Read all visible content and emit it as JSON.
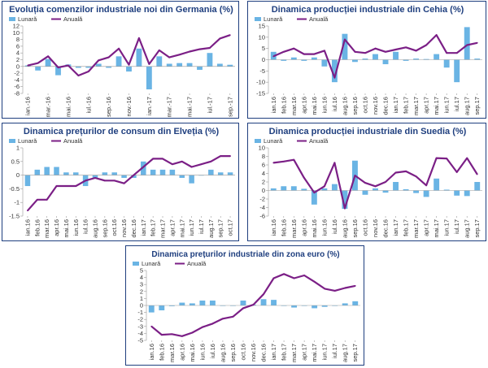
{
  "colors": {
    "bar": "#6ab4e4",
    "line": "#7b1f86",
    "title": "#1f3f7f",
    "border": "#1f3f7f",
    "axis": "#999999"
  },
  "chart_data": [
    {
      "type": "bar+line",
      "title": "Evoluția comenzilor industriale noi din Germania (%)",
      "legend": [
        "Lunară",
        "Anuală"
      ],
      "legend_position": "top-left",
      "ylim": [
        -8,
        12
      ],
      "yticks": [
        -8,
        -6,
        -4,
        -2,
        0,
        2,
        4,
        6,
        8,
        10,
        12
      ],
      "categories": [
        "ian.-16",
        "feb.-16",
        "mar.-16",
        "apr.-16",
        "mai.-16",
        "iun.-16",
        "iul.-16",
        "aug.-16",
        "sep.-16",
        "oct.-16",
        "nov.-16",
        "dec.-16",
        "ian.-17",
        "feb.-17",
        "mar.-17",
        "apr.-17",
        "mai.-17",
        "iun.-17",
        "iul.-17",
        "aug.-17",
        "sep.-17"
      ],
      "xtick_labels": [
        "ian.-16",
        "mar.-16",
        "mai.-16",
        "iul.-16",
        "sep.-16",
        "nov.-16",
        "ian.-17",
        "mar.-17",
        "mai.-17",
        "iul.-17",
        "sep.-17"
      ],
      "xtick_step": 2,
      "series": [
        {
          "name": "Lunară",
          "values": [
            0.3,
            -1.2,
            2.2,
            -2.6,
            0.6,
            -0.4,
            -0.4,
            0.8,
            -0.4,
            3.0,
            -1.5,
            5.3,
            -6.8,
            3.0,
            0.8,
            1.0,
            1.0,
            -1.0,
            4.0,
            0.8,
            0.5
          ]
        },
        {
          "name": "Anuală",
          "values": [
            0.3,
            1.0,
            3.0,
            -0.3,
            0.3,
            -2.7,
            -1.5,
            1.8,
            2.7,
            5.3,
            0.5,
            8.4,
            0.7,
            4.8,
            2.7,
            3.5,
            4.4,
            5.1,
            5.5,
            8.3,
            9.3
          ]
        }
      ]
    },
    {
      "type": "bar+line",
      "title": "Dinamica producției industriale din Cehia (%)",
      "legend": [
        "Lunară",
        "Anuală"
      ],
      "legend_position": "top-left",
      "ylim": [
        -15,
        15
      ],
      "yticks": [
        -15,
        -10,
        -5,
        0,
        5,
        10,
        15
      ],
      "categories": [
        "ian.16",
        "feb.16",
        "mar.16",
        "apr.16",
        "mai.16",
        "iun.16",
        "iul.16",
        "aug.16",
        "sep.16",
        "oct.16",
        "nov.16",
        "dec.16",
        "ian.17",
        "feb.17",
        "mar.17",
        "apr.17",
        "mai.17",
        "iun.17",
        "iul.17",
        "aug.17",
        "sep.17"
      ],
      "xtick_labels": [
        "ian.16",
        "feb.16",
        "mar.16",
        "apr.16",
        "mai.16",
        "iun.16",
        "iul.16",
        "aug.16",
        "sep.16",
        "oct.16",
        "nov.16",
        "dec.16",
        "ian.17",
        "feb.17",
        "mar.17",
        "apr.17",
        "mai.17",
        "iun.17",
        "iul.17",
        "aug.17",
        "sep.17"
      ],
      "xtick_step": 1,
      "series": [
        {
          "name": "Lunară",
          "values": [
            3.5,
            -0.5,
            1.0,
            -0.5,
            1.0,
            -3.0,
            -10.0,
            11.5,
            -1.0,
            0.5,
            2.5,
            -2.0,
            3.5,
            -0.5,
            0.5,
            0.3,
            2.5,
            -3.5,
            -10.0,
            14.5,
            0.5
          ]
        },
        {
          "name": "Anuală",
          "values": [
            1.5,
            3.5,
            5.0,
            2.5,
            2.5,
            4.0,
            -8.0,
            9.0,
            3.5,
            3.0,
            5.0,
            3.5,
            4.5,
            5.5,
            4.0,
            6.5,
            11.0,
            3.0,
            3.0,
            6.5,
            7.5
          ]
        }
      ]
    },
    {
      "type": "bar+line",
      "title": "Dinamica prețurilor de consum din Elveția (%)",
      "legend": [
        "Lunară",
        "Anuală"
      ],
      "legend_position": "top-left",
      "ylim": [
        -1.5,
        1
      ],
      "yticks": [
        -1.5,
        -1,
        -0.5,
        0,
        0.5,
        1
      ],
      "categories": [
        "ian.16",
        "feb.16",
        "mar.16",
        "apr.16",
        "mai.16",
        "iun.16",
        "iul.16",
        "aug.16",
        "sep.16",
        "oct.16",
        "nov.16",
        "dec.16",
        "ian.17",
        "feb.17",
        "mar.17",
        "apr.17",
        "mai.17",
        "iun.17",
        "iul.17",
        "aug.17",
        "sep.17",
        "oct.17"
      ],
      "xtick_labels": [
        "ian.16",
        "feb.16",
        "mar.16",
        "apr.16",
        "mai.16",
        "iun.16",
        "iul.16",
        "aug.16",
        "sep.16",
        "oct.16",
        "nov.16",
        "dec.16",
        "ian.17",
        "feb.17",
        "mar.17",
        "apr.17",
        "mai.17",
        "iun.17",
        "iul.17",
        "aug.17",
        "sep.17",
        "oct.17"
      ],
      "xtick_step": 1,
      "series": [
        {
          "name": "Lunară",
          "values": [
            -0.4,
            0.2,
            0.3,
            0.3,
            0.1,
            0.1,
            -0.4,
            -0.1,
            0.1,
            0.1,
            -0.1,
            -0.1,
            0.5,
            0.2,
            0.2,
            0.2,
            -0.1,
            -0.3,
            0.0,
            0.2,
            0.1,
            0.1
          ]
        },
        {
          "name": "Anuală",
          "values": [
            -1.3,
            -0.9,
            -0.9,
            -0.4,
            -0.4,
            -0.4,
            -0.2,
            -0.1,
            -0.2,
            -0.2,
            -0.3,
            0.0,
            0.3,
            0.6,
            0.6,
            0.4,
            0.5,
            0.3,
            0.4,
            0.5,
            0.7,
            0.7
          ]
        }
      ]
    },
    {
      "type": "bar+line",
      "title": "Dinamica producției industriale din Suedia (%)",
      "legend": [
        "Lunară",
        "Anuală"
      ],
      "legend_position": "top-left",
      "ylim": [
        -6,
        10
      ],
      "yticks": [
        -6,
        -4,
        -2,
        0,
        2,
        4,
        6,
        8,
        10
      ],
      "categories": [
        "ian.16",
        "feb.16",
        "mar.16",
        "apr.16",
        "mai.16",
        "iun.16",
        "iul.16",
        "aug.16",
        "sep.16",
        "oct.16",
        "nov.16",
        "dec.16",
        "ian.17",
        "feb.17",
        "mar.17",
        "apr.17",
        "mai.17",
        "iun.17",
        "iul.17",
        "aug.17",
        "sep.17"
      ],
      "xtick_labels": [
        "ian.16",
        "feb.16",
        "mar.16",
        "apr.16",
        "mai.16",
        "iun.16",
        "iul.16",
        "aug.16",
        "sep.16",
        "oct.16",
        "nov.16",
        "dec.16",
        "ian.17",
        "feb.17",
        "mar.17",
        "apr.17",
        "mai.17",
        "iun.17",
        "iul.17",
        "aug.17",
        "sep.17"
      ],
      "xtick_step": 1,
      "series": [
        {
          "name": "Lunară",
          "values": [
            0.5,
            1.0,
            1.0,
            0.4,
            -3.3,
            0.5,
            1.5,
            -4.3,
            7.0,
            -1.0,
            0.5,
            -0.5,
            2.0,
            0.3,
            -0.6,
            -1.5,
            2.8,
            0.2,
            -1.2,
            -1.3,
            2.0
          ]
        },
        {
          "name": "Anuală",
          "values": [
            6.5,
            6.8,
            7.2,
            3.0,
            -0.5,
            1.0,
            6.5,
            -4.2,
            3.5,
            1.8,
            1.0,
            2.0,
            4.2,
            4.5,
            3.3,
            1.2,
            7.6,
            7.5,
            4.3,
            7.6,
            3.8
          ]
        }
      ]
    },
    {
      "type": "bar+line",
      "title": "Dinamica prețurilor industriale din zona euro (%)",
      "legend": [
        "Lunară",
        "Anuală"
      ],
      "legend_position": "top-left",
      "ylim": [
        -5,
        5
      ],
      "yticks": [
        -5,
        -4,
        -3,
        -2,
        -1,
        0,
        1,
        2,
        3,
        4,
        5
      ],
      "categories": [
        "ian.16",
        "feb.16",
        "mar.16",
        "apr.16",
        "mai.16",
        "iun.16",
        "iul.16",
        "aug.16",
        "sep.16",
        "oct.16",
        "nov.16",
        "dec.16",
        "ian.17",
        "feb.17",
        "mar.17",
        "apr.17",
        "mai.17",
        "iun.17",
        "iul.17",
        "aug.17",
        "sep.17"
      ],
      "xtick_labels": [
        "ian.16",
        "feb.16",
        "mar.16",
        "apr.16",
        "mai.16",
        "iun.16",
        "iul.16",
        "aug.16",
        "sep.16",
        "oct.16",
        "nov.16",
        "dec.16",
        "ian.17",
        "feb.17",
        "mar.17",
        "apr.17",
        "mai.17",
        "iun.17",
        "iul.17",
        "aug.17",
        "sep.17"
      ],
      "xtick_step": 1,
      "series": [
        {
          "name": "Lunară",
          "values": [
            -1.0,
            -0.7,
            -0.1,
            0.4,
            0.3,
            0.7,
            0.7,
            0.0,
            0.0,
            0.7,
            0.1,
            0.9,
            0.8,
            0.0,
            -0.3,
            0.0,
            -0.4,
            -0.2,
            0.0,
            0.3,
            0.6
          ]
        },
        {
          "name": "Anuală",
          "values": [
            -3.0,
            -4.2,
            -4.1,
            -4.4,
            -3.9,
            -3.1,
            -2.6,
            -1.9,
            -1.6,
            -0.4,
            0.1,
            1.6,
            3.9,
            4.5,
            3.9,
            4.3,
            3.4,
            2.4,
            2.1,
            2.5,
            2.8
          ]
        }
      ]
    }
  ]
}
